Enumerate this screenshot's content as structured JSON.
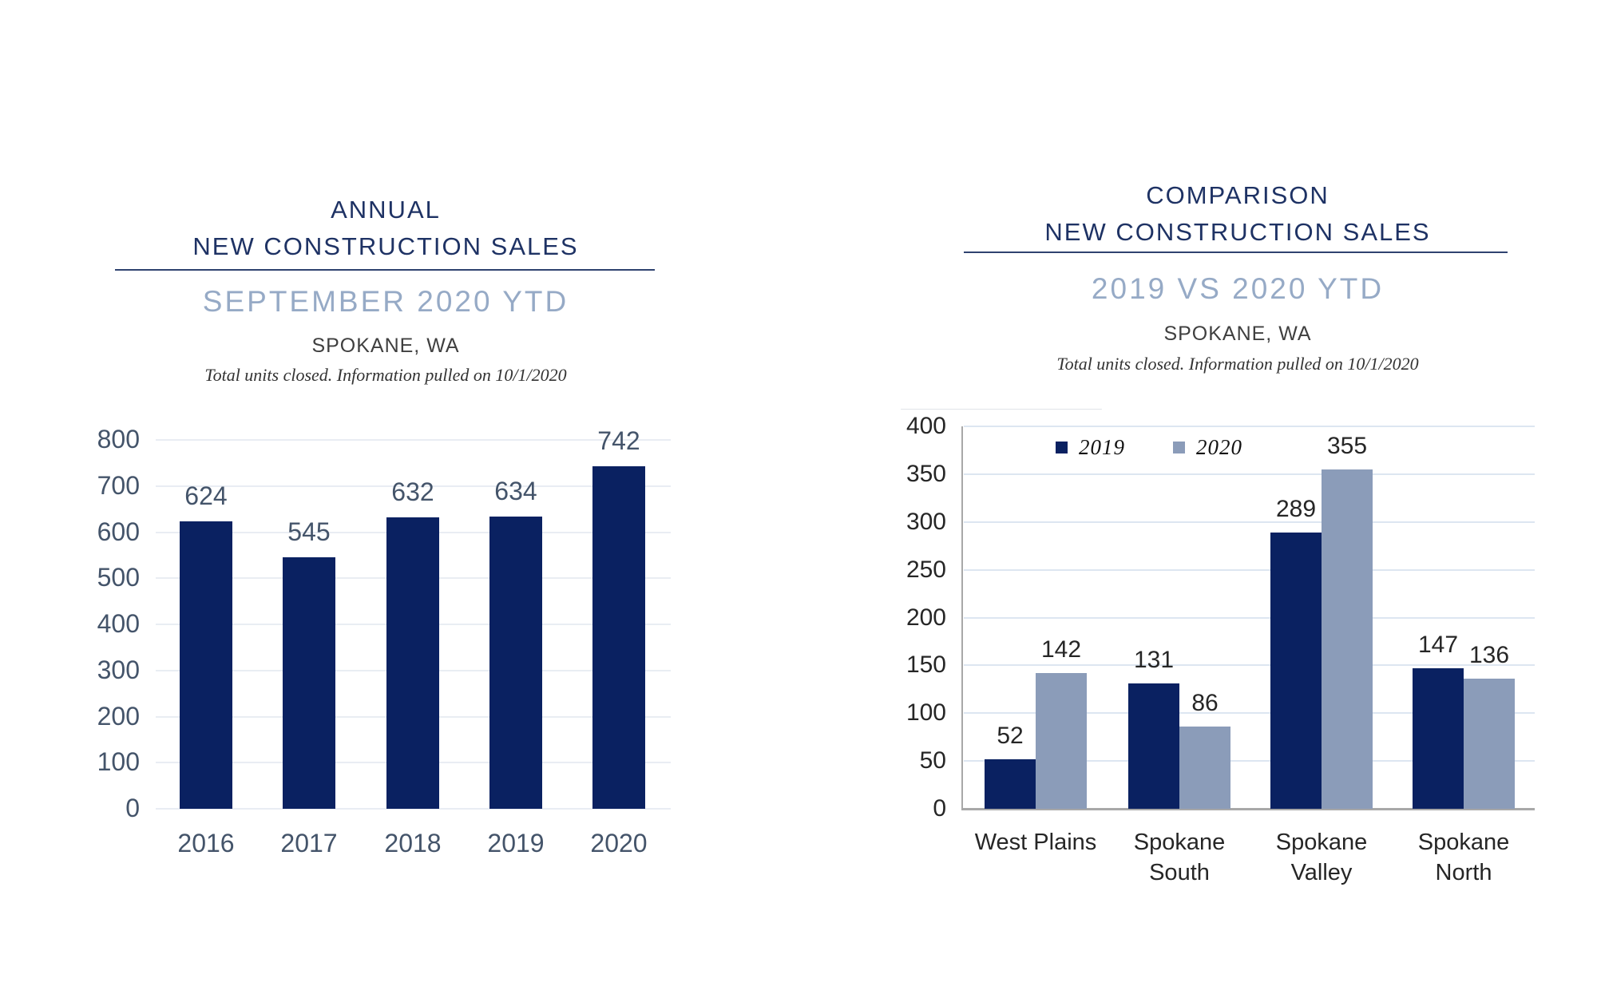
{
  "colors": {
    "navy_bar": "#0a2161",
    "gray_bar": "#8b9cb9",
    "title_navy": "#1e3264",
    "subtitle_blue": "#96aac6",
    "left_axis_text": "#44546a",
    "right_axis_text": "#262626",
    "gridline_left": "#e9edf3",
    "gridline_right": "#dde6f1",
    "axis_line_gray": "#a8a8a8"
  },
  "chart_data": [
    {
      "type": "bar",
      "title_lines": [
        "ANNUAL",
        "NEW CONSTRUCTION SALES"
      ],
      "title": "ANNUAL NEW CONSTRUCTION SALES",
      "subtitle": "SEPTEMBER 2020 YTD",
      "location": "SPOKANE, WA",
      "note": "Total units closed.  Information pulled on 10/1/2020",
      "categories": [
        "2016",
        "2017",
        "2018",
        "2019",
        "2020"
      ],
      "values": [
        624,
        545,
        632,
        634,
        742
      ],
      "ylim": [
        0,
        800
      ],
      "ytick_step": 100,
      "yticks": [
        0,
        100,
        200,
        300,
        400,
        500,
        600,
        700,
        800
      ],
      "grid": true,
      "legend_position": "none",
      "bar_color": "#0a2161",
      "xlabel": "",
      "ylabel": ""
    },
    {
      "type": "bar",
      "title_lines": [
        "COMPARISON",
        "NEW CONSTRUCTION SALES"
      ],
      "title": "COMPARISON NEW CONSTRUCTION SALES",
      "subtitle": "2019 VS 2020 YTD",
      "location": "SPOKANE, WA",
      "note": "Total units closed.  Information pulled on 10/1/2020",
      "categories": [
        "West Plains",
        "Spokane South",
        "Spokane Valley",
        "Spokane North"
      ],
      "categories_lines": [
        [
          "West Plains"
        ],
        [
          "Spokane",
          "South"
        ],
        [
          "Spokane",
          "Valley"
        ],
        [
          "Spokane",
          "North"
        ]
      ],
      "series": [
        {
          "name": "2019",
          "values": [
            52,
            131,
            289,
            147
          ],
          "color": "#0a2161"
        },
        {
          "name": "2020",
          "values": [
            142,
            86,
            355,
            136
          ],
          "color": "#8b9cb9"
        }
      ],
      "ylim": [
        0,
        400
      ],
      "ytick_step": 50,
      "yticks": [
        0,
        50,
        100,
        150,
        200,
        250,
        300,
        350,
        400
      ],
      "grid": true,
      "legend_position": "top",
      "xlabel": "",
      "ylabel": ""
    }
  ]
}
